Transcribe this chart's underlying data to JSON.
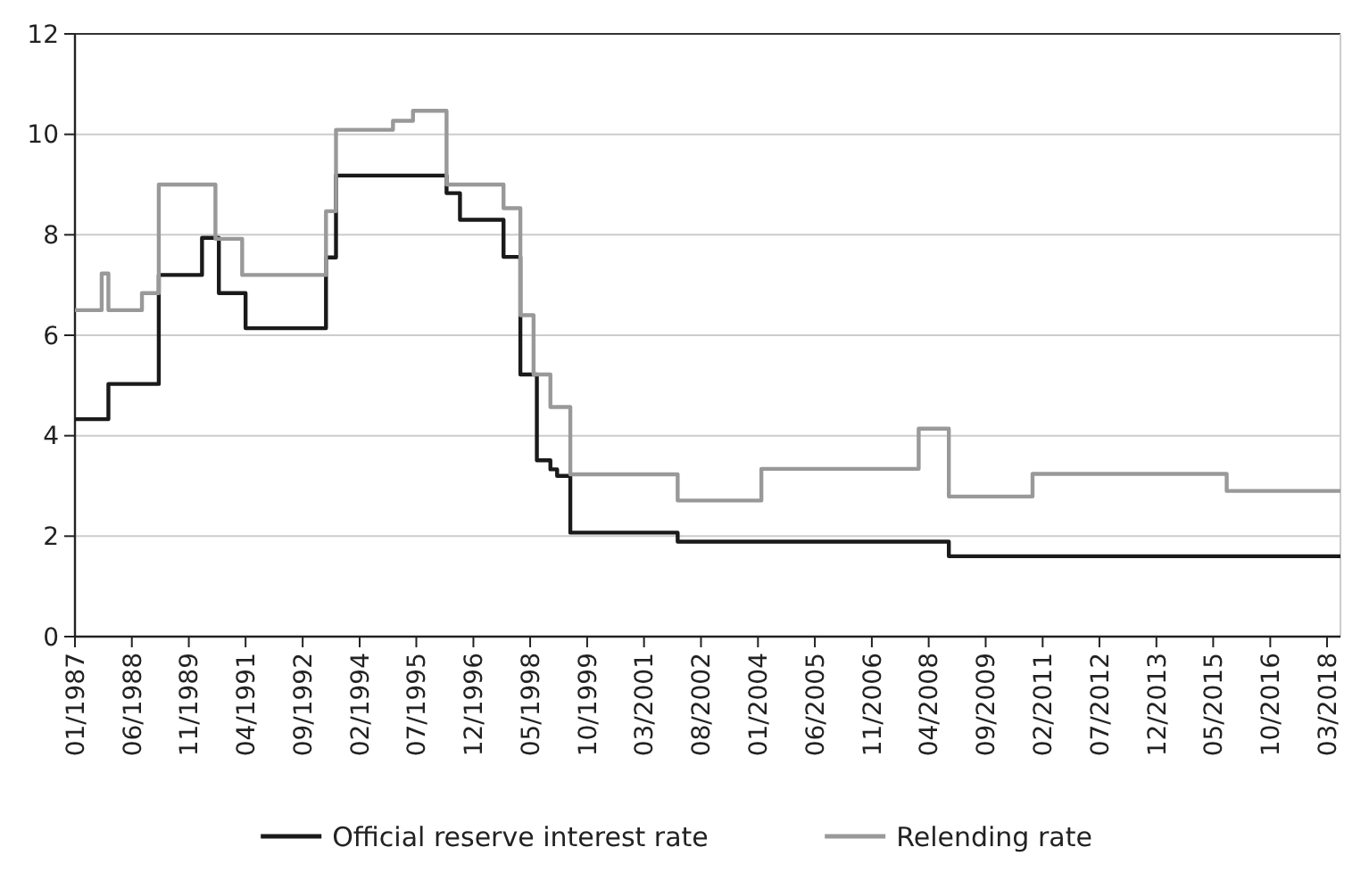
{
  "chart_data": {
    "type": "step",
    "xlim": [
      "1987-01",
      "2018-07"
    ],
    "xticks": [
      {
        "value": "1987-01",
        "label": "01/1987"
      },
      {
        "value": "1988-06",
        "label": "06/1988"
      },
      {
        "value": "1989-11",
        "label": "11/1989"
      },
      {
        "value": "1991-04",
        "label": "04/1991"
      },
      {
        "value": "1992-09",
        "label": "09/1992"
      },
      {
        "value": "1994-02",
        "label": "02/1994"
      },
      {
        "value": "1995-07",
        "label": "07/1995"
      },
      {
        "value": "1996-12",
        "label": "12/1996"
      },
      {
        "value": "1998-05",
        "label": "05/1998"
      },
      {
        "value": "1999-10",
        "label": "10/1999"
      },
      {
        "value": "2001-03",
        "label": "03/2001"
      },
      {
        "value": "2002-08",
        "label": "08/2002"
      },
      {
        "value": "2004-01",
        "label": "01/2004"
      },
      {
        "value": "2005-06",
        "label": "06/2005"
      },
      {
        "value": "2006-11",
        "label": "11/2006"
      },
      {
        "value": "2008-04",
        "label": "04/2008"
      },
      {
        "value": "2009-09",
        "label": "09/2009"
      },
      {
        "value": "2011-02",
        "label": "02/2011"
      },
      {
        "value": "2012-07",
        "label": "07/2012"
      },
      {
        "value": "2013-12",
        "label": "12/2013"
      },
      {
        "value": "2015-05",
        "label": "05/2015"
      },
      {
        "value": "2016-10",
        "label": "10/2016"
      },
      {
        "value": "2018-03",
        "label": "03/2018"
      }
    ],
    "ylim": [
      0,
      12
    ],
    "yticks": [
      0,
      2,
      4,
      6,
      8,
      10,
      12
    ],
    "grid": "y",
    "legend": "bottom",
    "line_style": "solid",
    "series": [
      {
        "name": "Official reserve interest rate",
        "color": "#1a1a1a",
        "x": [
          "1987-01",
          "1987-11",
          "1989-02",
          "1990-03",
          "1990-08",
          "1991-04",
          "1993-04",
          "1993-07",
          "1996-04",
          "1996-08",
          "1997-09",
          "1998-02",
          "1998-06",
          "1998-07",
          "1998-11",
          "1999-01",
          "1999-05",
          "2002-01",
          "2008-10",
          "2018-07"
        ],
        "values": [
          4.33,
          5.03,
          7.2,
          7.94,
          6.84,
          6.14,
          7.55,
          9.18,
          8.83,
          8.3,
          7.56,
          5.22,
          5.22,
          3.51,
          3.33,
          3.2,
          2.07,
          1.89,
          1.6,
          1.6
        ]
      },
      {
        "name": "Relending rate",
        "color": "#999999",
        "x": [
          "1987-01",
          "1987-09",
          "1987-11",
          "1988-09",
          "1989-02",
          "1990-07",
          "1991-03",
          "1993-04",
          "1993-07",
          "1994-12",
          "1995-06",
          "1996-04",
          "1997-09",
          "1998-02",
          "1998-06",
          "1998-11",
          "1999-05",
          "2002-01",
          "2004-02",
          "2008-01",
          "2008-10",
          "2010-11",
          "2015-09",
          "2018-07"
        ],
        "values": [
          6.5,
          7.23,
          6.5,
          6.84,
          9.0,
          7.92,
          7.2,
          8.47,
          10.09,
          10.27,
          10.47,
          9.0,
          8.53,
          6.4,
          5.22,
          4.57,
          3.23,
          2.71,
          3.34,
          4.14,
          2.79,
          3.24,
          2.9,
          2.9
        ]
      }
    ]
  }
}
